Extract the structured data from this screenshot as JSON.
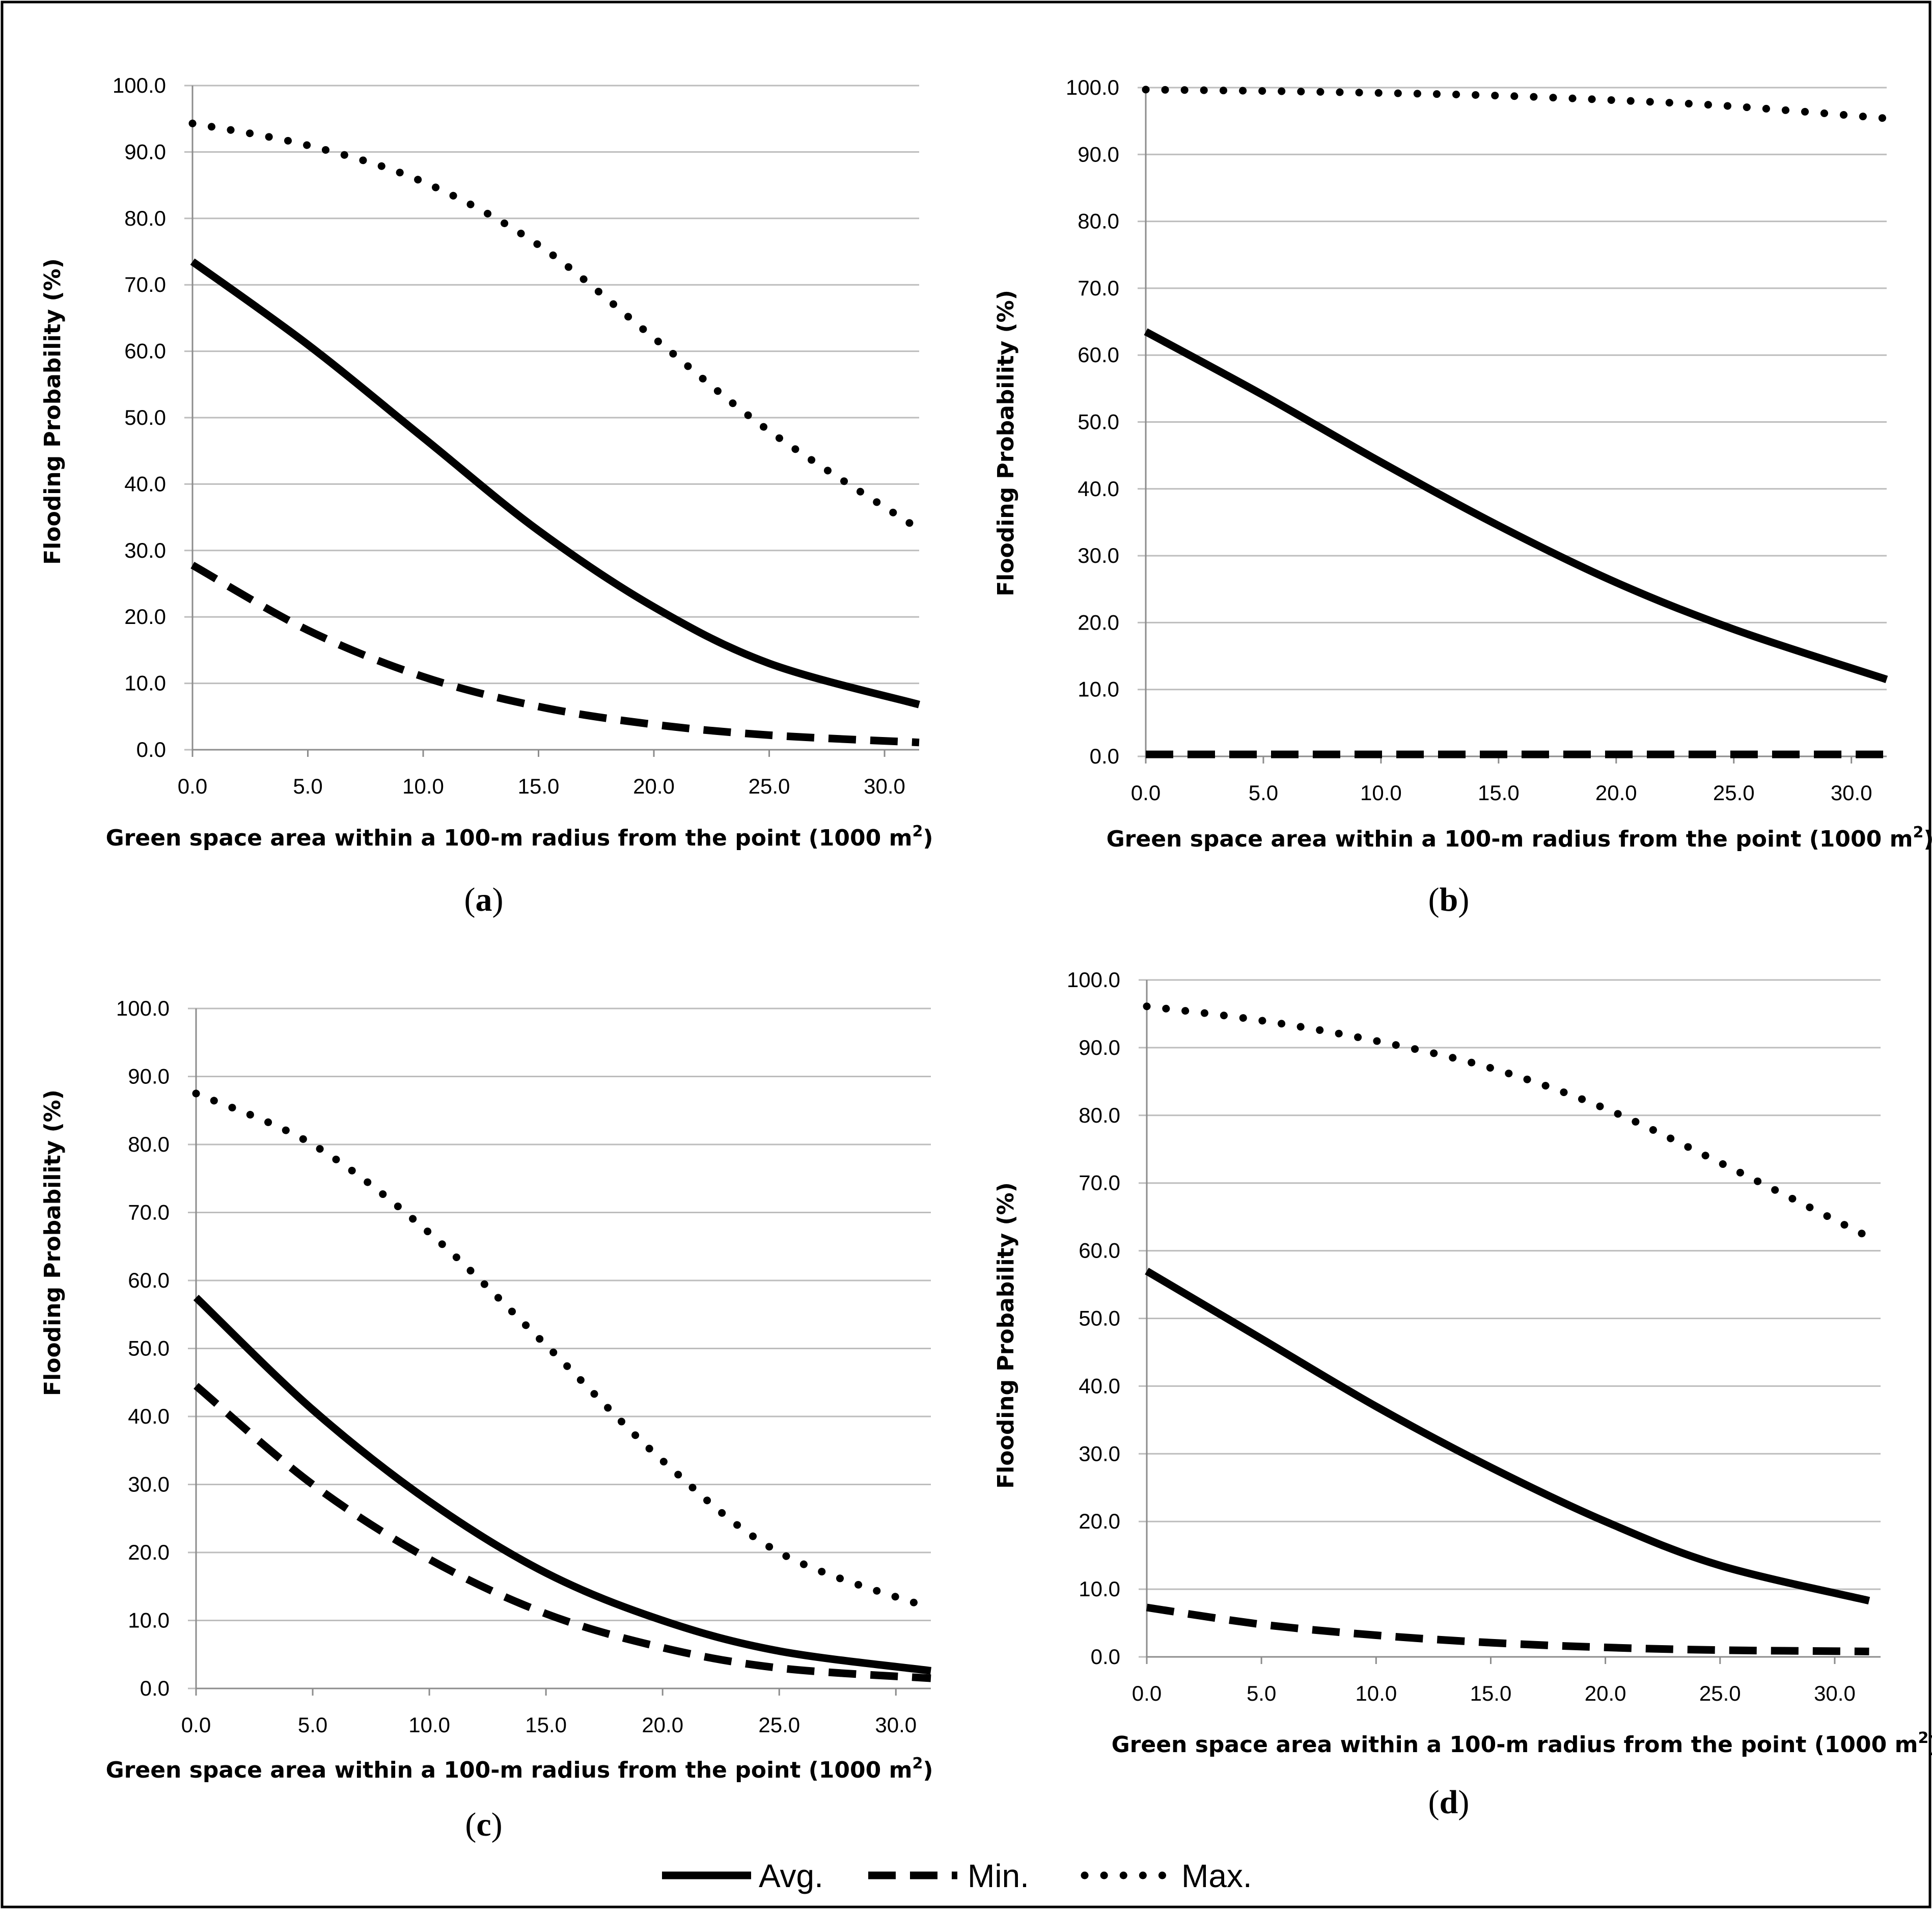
{
  "chart_data": [
    {
      "type": "line",
      "panel_label": "a",
      "xlabel": "Green  space area within a 100-m radius from the point (1000 m",
      "xlabel_sup": "2",
      "xlabel_end": ")",
      "ylabel": "Flooding Probability (%)",
      "xlim": [
        0,
        31.5
      ],
      "ylim": [
        0,
        100
      ],
      "x_ticks": [
        "0.0",
        "5.0",
        "10.0",
        "15.0",
        "20.0",
        "25.0",
        "30.0"
      ],
      "y_ticks": [
        "0.0",
        "10.0",
        "20.0",
        "30.0",
        "40.0",
        "50.0",
        "60.0",
        "70.0",
        "80.0",
        "90.0",
        "100.0"
      ],
      "x": [
        0,
        5,
        10,
        15,
        20,
        25,
        31.5
      ],
      "series": [
        {
          "name": "Avg.",
          "style": "solid",
          "values": [
            73.5,
            61,
            47,
            33,
            21.5,
            13,
            6.8
          ]
        },
        {
          "name": "Min.",
          "style": "dashed",
          "values": [
            27.8,
            18,
            11,
            6.5,
            3.8,
            2.2,
            1.1
          ]
        },
        {
          "name": "Max.",
          "style": "dotted",
          "values": [
            94.3,
            91,
            85.5,
            76,
            62,
            48,
            33.2
          ]
        }
      ]
    },
    {
      "type": "line",
      "panel_label": "b",
      "xlabel": "Green  space area within a 100-m radius from the point (1000 m",
      "xlabel_sup": "2",
      "xlabel_end": ")",
      "ylabel": "Flooding Probability  (%)",
      "xlim": [
        0,
        31.5
      ],
      "ylim": [
        0,
        100
      ],
      "x_ticks": [
        "0.0",
        "5.0",
        "10.0",
        "15.0",
        "20.0",
        "25.0",
        "30.0"
      ],
      "y_ticks": [
        "0.0",
        "10.0",
        "20.0",
        "30.0",
        "40.0",
        "50.0",
        "60.0",
        "70.0",
        "80.0",
        "90.0",
        "100.0"
      ],
      "x": [
        0,
        5,
        10,
        15,
        20,
        25,
        31.5
      ],
      "series": [
        {
          "name": "Avg.",
          "style": "solid",
          "values": [
            63.5,
            54,
            44,
            34.5,
            26,
            19,
            11.5
          ]
        },
        {
          "name": "Min.",
          "style": "dashed",
          "values": [
            0.3,
            0.3,
            0.3,
            0.3,
            0.3,
            0.3,
            0.3
          ]
        },
        {
          "name": "Max.",
          "style": "dotted",
          "values": [
            99.7,
            99.5,
            99.2,
            98.8,
            98.1,
            97.2,
            95.4
          ]
        }
      ]
    },
    {
      "type": "line",
      "panel_label": "c",
      "xlabel": "Green  space area within a 100-m radius from the point (1000 m",
      "xlabel_sup": "2",
      "xlabel_end": ")",
      "ylabel": "Flooding Probability (%)",
      "xlim": [
        0,
        31.5
      ],
      "ylim": [
        0,
        100
      ],
      "x_ticks": [
        "0.0",
        "5.0",
        "10.0",
        "15.0",
        "20.0",
        "25.0",
        "30.0"
      ],
      "y_ticks": [
        "0.0",
        "10.0",
        "20.0",
        "30.0",
        "40.0",
        "50.0",
        "60.0",
        "70.0",
        "80.0",
        "90.0",
        "100.0"
      ],
      "x": [
        0,
        5,
        10,
        15,
        20,
        25,
        31.5
      ],
      "series": [
        {
          "name": "Avg.",
          "style": "solid",
          "values": [
            57.5,
            41,
            27.5,
            17,
            10,
            5.5,
            2.6
          ]
        },
        {
          "name": "Min.",
          "style": "dashed",
          "values": [
            44.5,
            30,
            19,
            11,
            6,
            3,
            1.5
          ]
        },
        {
          "name": "Max.",
          "style": "dotted",
          "values": [
            87.5,
            80,
            67,
            50.5,
            33.5,
            20,
            11.8
          ]
        }
      ]
    },
    {
      "type": "line",
      "panel_label": "d",
      "xlabel": "Green  space area within a 100-m radius from the point (1000 m",
      "xlabel_sup": "2",
      "xlabel_end": ")",
      "ylabel": "Flooding Probability  (%)",
      "xlim": [
        0,
        32
      ],
      "ylim": [
        0,
        100
      ],
      "x_ticks": [
        "0.0",
        "5.0",
        "10.0",
        "15.0",
        "20.0",
        "25.0",
        "30.0"
      ],
      "y_ticks": [
        "0.0",
        "10.0",
        "20.0",
        "30.0",
        "40.0",
        "50.0",
        "60.0",
        "70.0",
        "80.0",
        "90.0",
        "100.0"
      ],
      "x": [
        0,
        5,
        10,
        15,
        20,
        25,
        31.5
      ],
      "series": [
        {
          "name": "Avg.",
          "style": "solid",
          "values": [
            57,
            47,
            37,
            28,
            20,
            13.5,
            8.3
          ]
        },
        {
          "name": "Min.",
          "style": "dashed",
          "values": [
            7.3,
            4.8,
            3.2,
            2.1,
            1.4,
            1.0,
            0.8
          ]
        },
        {
          "name": "Max.",
          "style": "dotted",
          "values": [
            96.1,
            94,
            91,
            87,
            81,
            73,
            62
          ]
        }
      ]
    }
  ],
  "legend": {
    "items": [
      {
        "label": "Avg.",
        "style": "solid"
      },
      {
        "label": "Min.",
        "style": "dashed"
      },
      {
        "label": "Max.",
        "style": "dotted"
      }
    ]
  }
}
